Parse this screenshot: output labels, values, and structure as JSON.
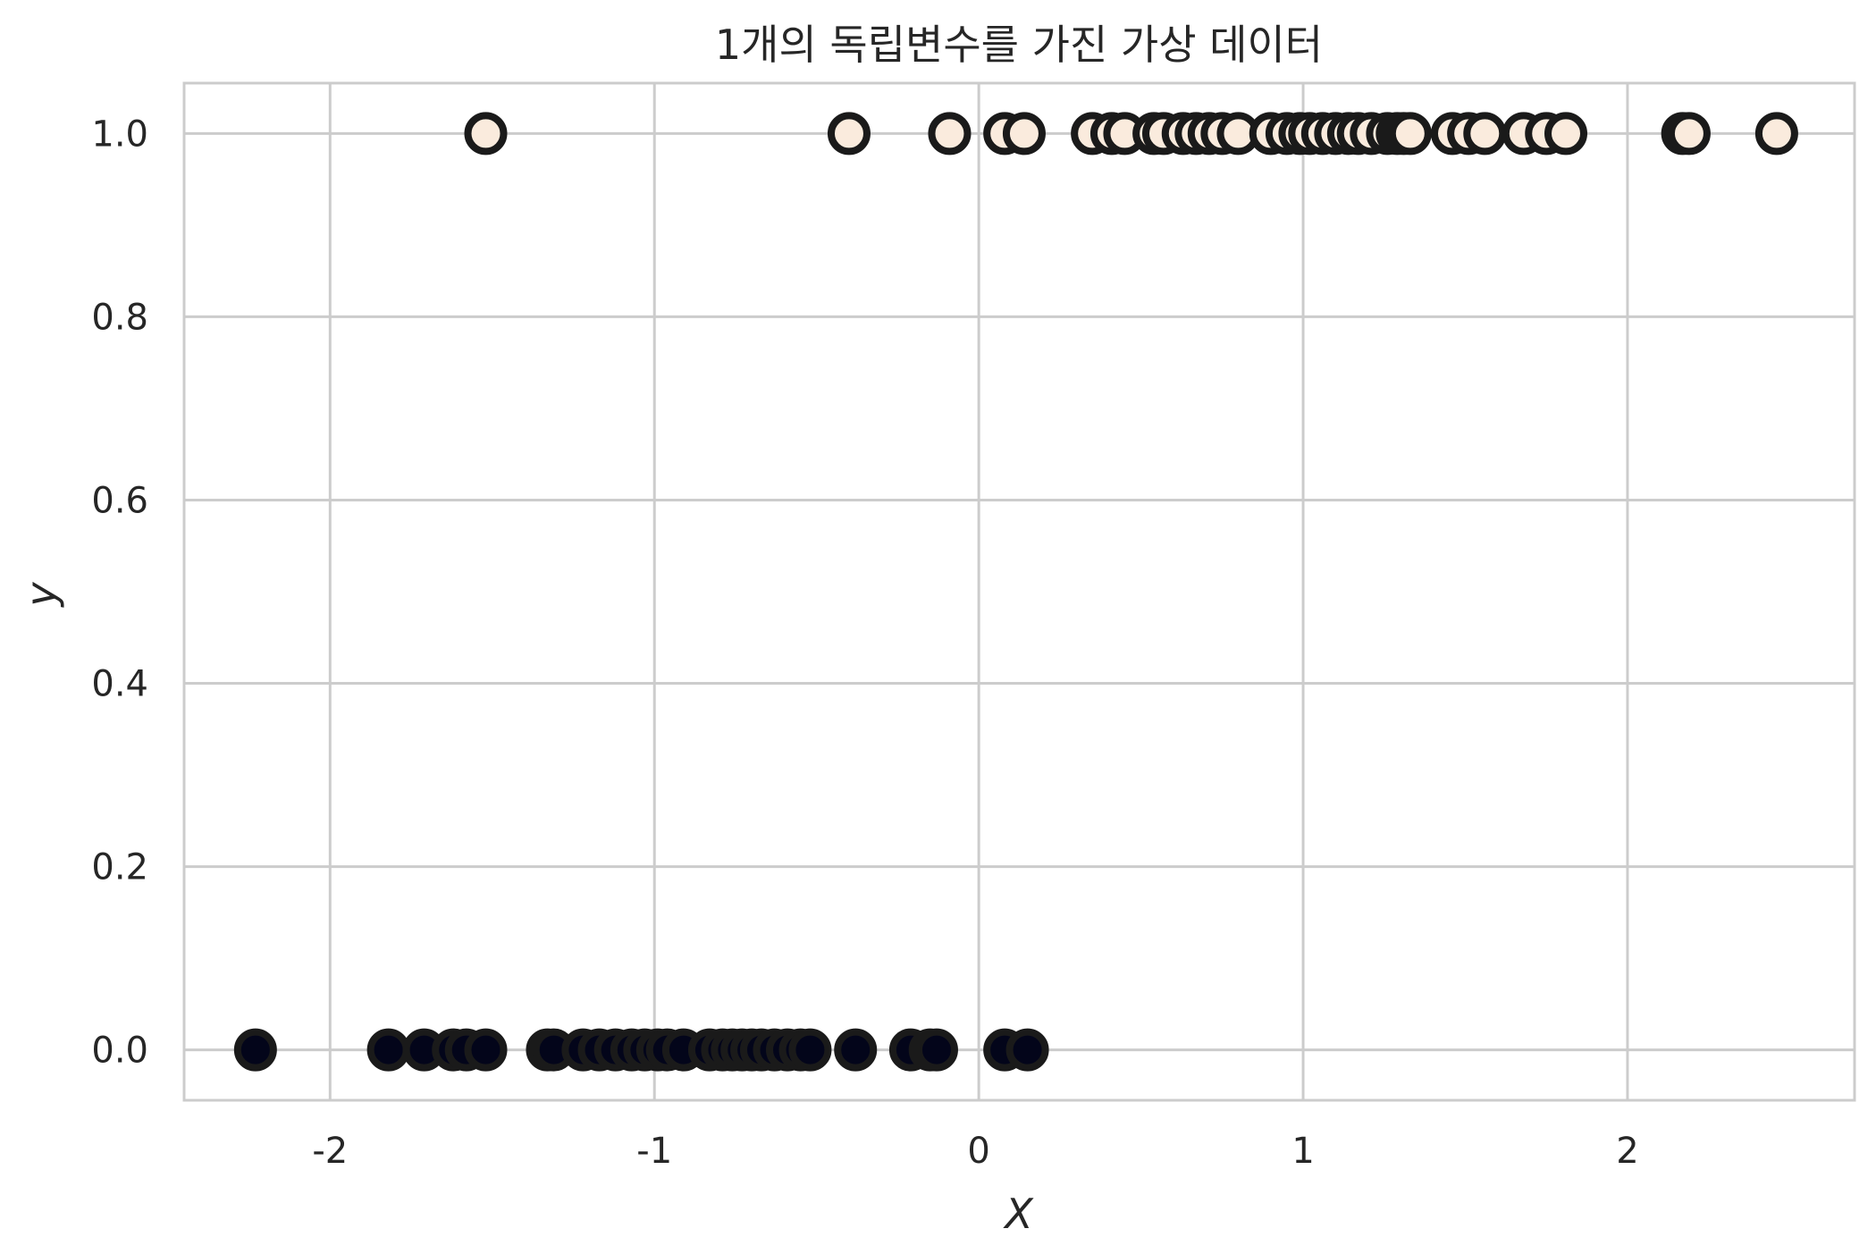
{
  "chart_data": {
    "type": "scatter",
    "title": "1개의 독립변수를 가진 가상 데이터",
    "xlabel": "X",
    "ylabel": "y",
    "xlim": [
      -2.45,
      2.7
    ],
    "ylim": [
      -0.055,
      1.055
    ],
    "grid": true,
    "x_ticks": [
      -2,
      -1,
      0,
      1,
      2
    ],
    "x_tick_labels": [
      "-2",
      "-1",
      "0",
      "1",
      "2"
    ],
    "y_ticks": [
      0.0,
      0.2,
      0.4,
      0.6,
      0.8,
      1.0
    ],
    "y_tick_labels": [
      "0.0",
      "0.2",
      "0.4",
      "0.6",
      "0.8",
      "1.0"
    ],
    "colors": {
      "class_0_fill": "#03051a",
      "class_1_fill": "#faebdd",
      "marker_edge": "#1a1a1a",
      "grid": "#cccccc",
      "frame": "#cccccc"
    },
    "series": [
      {
        "class": 0,
        "y": 0,
        "x": [
          -2.23,
          -1.82,
          -1.71,
          -1.62,
          -1.58,
          -1.52,
          -1.33,
          -1.31,
          -1.22,
          -1.17,
          -1.12,
          -1.07,
          -1.03,
          -0.99,
          -0.96,
          -0.91,
          -0.83,
          -0.79,
          -0.76,
          -0.73,
          -0.7,
          -0.67,
          -0.63,
          -0.59,
          -0.55,
          -0.52,
          -0.38,
          -0.21,
          -0.15,
          -0.13,
          0.08,
          0.15
        ]
      },
      {
        "class": 1,
        "y": 1,
        "x": [
          -1.52,
          -0.4,
          -0.09,
          0.08,
          0.14,
          0.35,
          0.41,
          0.45,
          0.54,
          0.57,
          0.63,
          0.67,
          0.71,
          0.75,
          0.8,
          0.9,
          0.95,
          0.99,
          1.02,
          1.06,
          1.1,
          1.14,
          1.17,
          1.21,
          1.26,
          1.29,
          1.31,
          1.33,
          1.46,
          1.51,
          1.56,
          1.68,
          1.75,
          1.81,
          2.17,
          2.19,
          2.46
        ]
      }
    ]
  }
}
